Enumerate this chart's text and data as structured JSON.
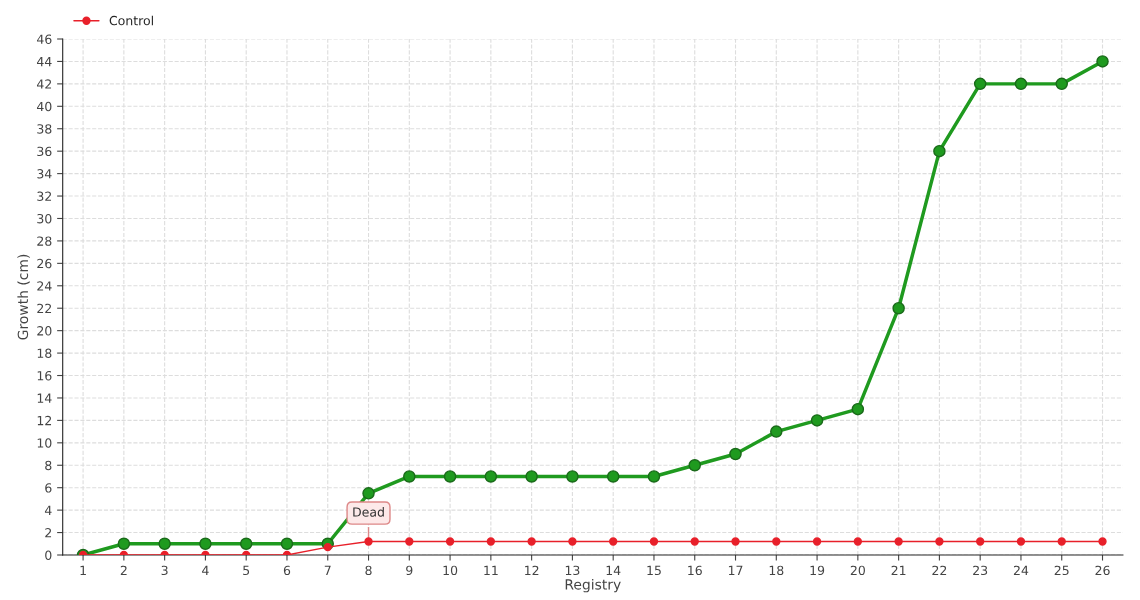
{
  "chart_data": {
    "type": "line",
    "categories": [
      "1",
      "2",
      "3",
      "4",
      "5",
      "6",
      "7",
      "8",
      "9",
      "10",
      "11",
      "12",
      "13",
      "14",
      "15",
      "16",
      "17",
      "18",
      "19",
      "20",
      "21",
      "22",
      "23",
      "24",
      "25",
      "26"
    ],
    "series": [
      {
        "color": "#1f9a1f",
        "values": [
          0,
          1,
          1,
          1,
          1,
          1,
          1,
          5.5,
          7,
          7,
          7,
          7,
          7,
          7,
          7,
          8,
          9,
          11,
          12,
          13,
          22,
          36,
          42,
          42,
          42,
          44
        ]
      },
      {
        "name": "Control",
        "color": "#e8202a",
        "values": [
          0,
          0,
          0,
          0,
          0,
          0,
          0.7,
          1.2,
          1.2,
          1.2,
          1.2,
          1.2,
          1.2,
          1.2,
          1.2,
          1.2,
          1.2,
          1.2,
          1.2,
          1.2,
          1.2,
          1.2,
          1.2,
          1.2,
          1.2,
          1.2
        ]
      }
    ],
    "xlabel": "Registry",
    "ylabel": "Growth (cm)",
    "ylim": [
      0,
      46
    ],
    "yticks": [
      0,
      2,
      4,
      6,
      8,
      10,
      12,
      14,
      16,
      18,
      20,
      22,
      24,
      26,
      28,
      30,
      32,
      34,
      36,
      38,
      40,
      42,
      44,
      46
    ],
    "annotations": [
      {
        "text": "Dead",
        "x": "8",
        "y": 1.2
      }
    ],
    "grid": true,
    "legend": "top left",
    "marker": "circle",
    "line_style": "solid"
  }
}
